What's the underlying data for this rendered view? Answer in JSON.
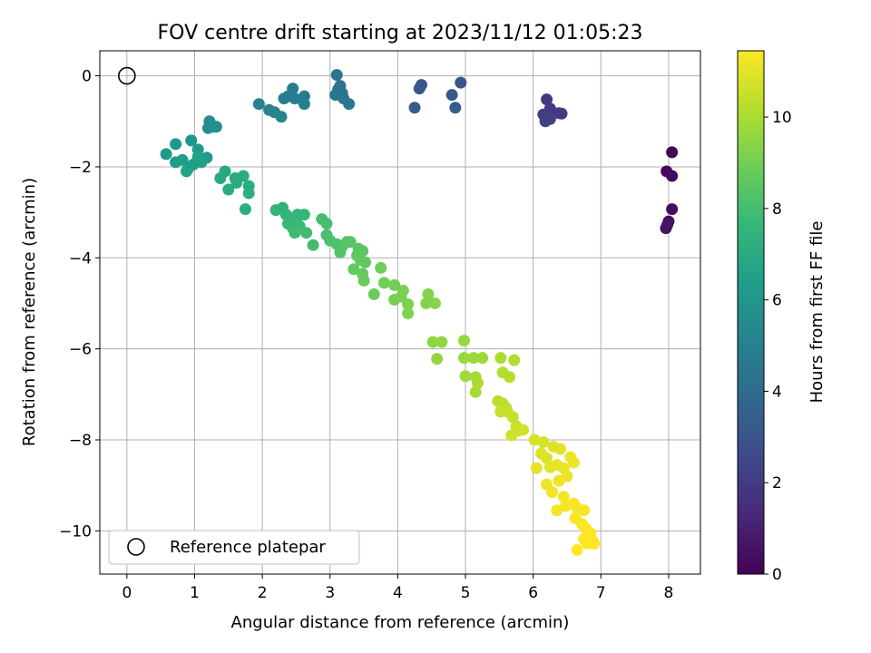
{
  "chart_data": {
    "type": "scatter",
    "title": "FOV centre drift starting at 2023/11/12 01:05:23",
    "xlabel": "Angular distance from reference (arcmin)",
    "ylabel": "Rotation from reference (arcmin)",
    "xlim": [
      -0.4,
      8.47
    ],
    "ylim": [
      -10.95,
      0.55
    ],
    "xticks": [
      0,
      1,
      2,
      3,
      4,
      5,
      6,
      7,
      8
    ],
    "yticks": [
      0,
      -2,
      -4,
      -6,
      -8,
      -10
    ],
    "xtick_labels": [
      "0",
      "1",
      "2",
      "3",
      "4",
      "5",
      "6",
      "7",
      "8"
    ],
    "ytick_labels": [
      "0",
      "−2",
      "−4",
      "−6",
      "−8",
      "−10"
    ],
    "grid": true,
    "legend_position": "lower-left",
    "legend": [
      {
        "label": "Reference platepar",
        "marker": "open-circle",
        "x": 0,
        "y": 0
      }
    ],
    "colorbar": {
      "label": "Hours from first FF file",
      "colormap": "viridis",
      "range": [
        0,
        11.45
      ],
      "ticks": [
        0,
        2,
        4,
        6,
        8,
        10
      ],
      "tick_labels": [
        "0",
        "2",
        "4",
        "6",
        "8",
        "10"
      ]
    },
    "points": [
      [
        8.05,
        -1.68,
        0.1
      ],
      [
        7.97,
        -2.1,
        0.2
      ],
      [
        8.05,
        -2.2,
        0.3
      ],
      [
        8.05,
        -2.93,
        0.4
      ],
      [
        8.0,
        -3.2,
        0.5
      ],
      [
        7.98,
        -3.28,
        0.55
      ],
      [
        7.96,
        -3.35,
        0.6
      ],
      [
        6.2,
        -0.52,
        1.9
      ],
      [
        6.25,
        -0.72,
        1.95
      ],
      [
        6.38,
        -0.82,
        2.0
      ],
      [
        6.42,
        -0.83,
        2.05
      ],
      [
        6.15,
        -0.85,
        2.1
      ],
      [
        6.22,
        -0.9,
        2.15
      ],
      [
        6.25,
        -0.95,
        2.2
      ],
      [
        6.18,
        -1.0,
        2.25
      ],
      [
        4.93,
        -0.15,
        3.0
      ],
      [
        4.35,
        -0.2,
        3.1
      ],
      [
        4.32,
        -0.28,
        3.15
      ],
      [
        4.8,
        -0.42,
        3.2
      ],
      [
        4.25,
        -0.7,
        3.3
      ],
      [
        4.85,
        -0.7,
        3.35
      ],
      [
        3.1,
        0.02,
        4.2
      ],
      [
        3.15,
        -0.22,
        4.3
      ],
      [
        3.12,
        -0.3,
        4.35
      ],
      [
        3.18,
        -0.38,
        4.4
      ],
      [
        3.08,
        -0.42,
        4.45
      ],
      [
        3.2,
        -0.5,
        4.5
      ],
      [
        3.28,
        -0.62,
        4.55
      ],
      [
        2.45,
        -0.28,
        4.7
      ],
      [
        2.62,
        -0.45,
        4.75
      ],
      [
        2.38,
        -0.45,
        4.8
      ],
      [
        2.48,
        -0.5,
        4.85
      ],
      [
        2.32,
        -0.5,
        4.9
      ],
      [
        2.62,
        -0.62,
        4.95
      ],
      [
        1.95,
        -0.62,
        5.1
      ],
      [
        2.1,
        -0.75,
        5.15
      ],
      [
        2.18,
        -0.8,
        5.2
      ],
      [
        2.28,
        -0.9,
        5.25
      ],
      [
        1.22,
        -1.0,
        5.6
      ],
      [
        1.32,
        -1.12,
        5.65
      ],
      [
        1.2,
        -1.15,
        5.7
      ],
      [
        1.28,
        -1.12,
        5.75
      ],
      [
        0.95,
        -1.42,
        6.0
      ],
      [
        0.72,
        -1.5,
        6.05
      ],
      [
        1.05,
        -1.62,
        6.1
      ],
      [
        0.58,
        -1.72,
        6.15
      ],
      [
        1.18,
        -1.8,
        6.2
      ],
      [
        0.82,
        -1.85,
        6.25
      ],
      [
        0.72,
        -1.9,
        6.3
      ],
      [
        0.98,
        -1.95,
        6.35
      ],
      [
        0.92,
        -2.0,
        6.4
      ],
      [
        0.9,
        -2.05,
        6.45
      ],
      [
        1.1,
        -1.9,
        6.5
      ],
      [
        0.88,
        -2.1,
        6.55
      ],
      [
        1.05,
        -1.78,
        6.6
      ],
      [
        1.45,
        -2.1,
        6.8
      ],
      [
        1.38,
        -2.25,
        6.85
      ],
      [
        1.6,
        -2.25,
        6.9
      ],
      [
        1.72,
        -2.2,
        6.95
      ],
      [
        1.62,
        -2.35,
        7.0
      ],
      [
        1.5,
        -2.5,
        7.05
      ],
      [
        1.8,
        -2.42,
        7.1
      ],
      [
        1.8,
        -2.58,
        7.15
      ],
      [
        1.75,
        -2.93,
        7.2
      ],
      [
        2.3,
        -2.9,
        7.4
      ],
      [
        2.2,
        -2.95,
        7.45
      ],
      [
        2.35,
        -3.05,
        7.5
      ],
      [
        2.52,
        -3.05,
        7.55
      ],
      [
        2.62,
        -3.05,
        7.6
      ],
      [
        2.5,
        -3.15,
        7.65
      ],
      [
        2.38,
        -3.25,
        7.7
      ],
      [
        2.45,
        -3.35,
        7.75
      ],
      [
        2.55,
        -3.3,
        7.8
      ],
      [
        2.48,
        -3.45,
        7.85
      ],
      [
        2.65,
        -3.45,
        7.9
      ],
      [
        2.75,
        -3.72,
        7.95
      ],
      [
        2.88,
        -3.15,
        8.0
      ],
      [
        2.95,
        -3.25,
        8.05
      ],
      [
        2.95,
        -3.5,
        8.1
      ],
      [
        3.0,
        -3.62,
        8.15
      ],
      [
        3.1,
        -3.7,
        8.2
      ],
      [
        3.18,
        -3.75,
        8.25
      ],
      [
        3.15,
        -3.88,
        8.3
      ],
      [
        3.25,
        -3.65,
        8.35
      ],
      [
        3.3,
        -3.65,
        8.4
      ],
      [
        3.42,
        -3.8,
        8.45
      ],
      [
        3.48,
        -3.85,
        8.5
      ],
      [
        3.4,
        -3.95,
        8.55
      ],
      [
        3.45,
        -4.05,
        8.6
      ],
      [
        3.52,
        -4.1,
        8.65
      ],
      [
        3.35,
        -4.25,
        8.7
      ],
      [
        3.48,
        -4.35,
        8.75
      ],
      [
        3.5,
        -4.5,
        8.8
      ],
      [
        3.65,
        -4.8,
        8.85
      ],
      [
        3.75,
        -4.22,
        8.9
      ],
      [
        3.8,
        -4.55,
        8.95
      ],
      [
        3.95,
        -4.6,
        9.0
      ],
      [
        3.95,
        -4.92,
        9.05
      ],
      [
        4.05,
        -4.85,
        9.1
      ],
      [
        4.08,
        -4.72,
        9.15
      ],
      [
        4.15,
        -5.02,
        9.2
      ],
      [
        4.15,
        -5.22,
        9.25
      ],
      [
        4.45,
        -4.8,
        9.3
      ],
      [
        4.42,
        -5.0,
        9.35
      ],
      [
        4.55,
        -5.0,
        9.4
      ],
      [
        4.52,
        -5.85,
        9.5
      ],
      [
        4.65,
        -5.85,
        9.55
      ],
      [
        4.58,
        -6.22,
        9.6
      ],
      [
        4.98,
        -5.82,
        9.65
      ],
      [
        4.98,
        -6.2,
        9.7
      ],
      [
        5.12,
        -6.2,
        9.75
      ],
      [
        5.25,
        -6.2,
        9.8
      ],
      [
        5.0,
        -6.6,
        9.85
      ],
      [
        5.15,
        -6.62,
        9.9
      ],
      [
        5.15,
        -6.95,
        9.95
      ],
      [
        5.18,
        -6.75,
        10.0
      ],
      [
        5.52,
        -6.2,
        10.05
      ],
      [
        5.72,
        -6.25,
        10.1
      ],
      [
        5.55,
        -6.52,
        10.15
      ],
      [
        5.65,
        -6.62,
        10.2
      ],
      [
        5.48,
        -7.15,
        10.25
      ],
      [
        5.55,
        -7.2,
        10.3
      ],
      [
        5.6,
        -7.3,
        10.35
      ],
      [
        5.62,
        -7.38,
        10.4
      ],
      [
        5.52,
        -7.38,
        10.45
      ],
      [
        5.7,
        -7.5,
        10.5
      ],
      [
        5.75,
        -7.7,
        10.55
      ],
      [
        5.78,
        -7.8,
        10.6
      ],
      [
        5.68,
        -7.9,
        10.65
      ],
      [
        5.85,
        -7.78,
        10.7
      ],
      [
        6.02,
        -8.0,
        10.75
      ],
      [
        6.15,
        -8.05,
        10.8
      ],
      [
        6.12,
        -8.3,
        10.85
      ],
      [
        6.2,
        -8.4,
        10.9
      ],
      [
        6.3,
        -8.15,
        10.92
      ],
      [
        6.4,
        -8.2,
        10.95
      ],
      [
        6.05,
        -8.62,
        11.0
      ],
      [
        6.25,
        -8.6,
        11.02
      ],
      [
        6.35,
        -8.55,
        11.05
      ],
      [
        6.45,
        -8.62,
        11.08
      ],
      [
        6.55,
        -8.38,
        11.1
      ],
      [
        6.6,
        -8.5,
        11.12
      ],
      [
        6.5,
        -8.8,
        11.15
      ],
      [
        6.38,
        -8.9,
        11.18
      ],
      [
        6.2,
        -8.98,
        11.2
      ],
      [
        6.28,
        -9.15,
        11.22
      ],
      [
        6.45,
        -9.25,
        11.25
      ],
      [
        6.48,
        -9.45,
        11.28
      ],
      [
        6.35,
        -9.55,
        11.3
      ],
      [
        6.6,
        -9.4,
        11.32
      ],
      [
        6.65,
        -9.5,
        11.34
      ],
      [
        6.75,
        -9.55,
        11.36
      ],
      [
        6.62,
        -9.72,
        11.38
      ],
      [
        6.72,
        -9.85,
        11.4
      ],
      [
        6.78,
        -9.95,
        11.41
      ],
      [
        6.85,
        -10.05,
        11.42
      ],
      [
        6.75,
        -10.18,
        11.43
      ],
      [
        6.88,
        -10.22,
        11.44
      ],
      [
        6.9,
        -10.28,
        11.45
      ],
      [
        6.8,
        -10.28,
        11.45
      ],
      [
        6.65,
        -10.42,
        11.45
      ]
    ]
  }
}
